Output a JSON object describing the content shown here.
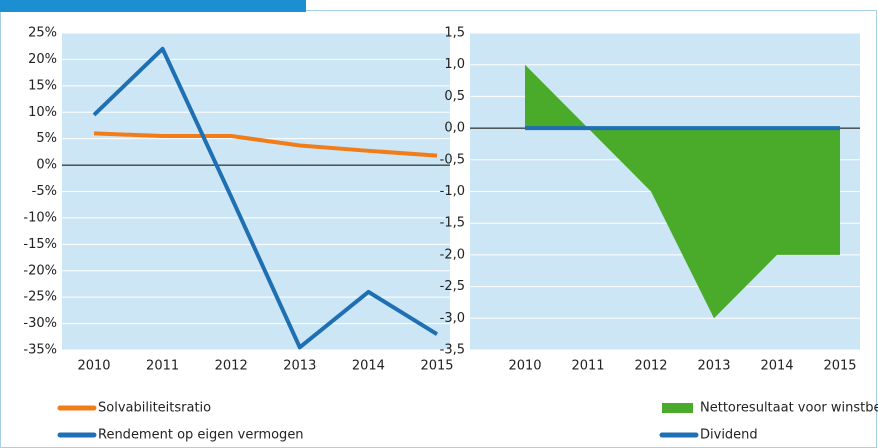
{
  "chart_data": [
    {
      "type": "line",
      "categories": [
        "2010",
        "2011",
        "2012",
        "2013",
        "2014",
        "2015"
      ],
      "ylim": [
        -35,
        25
      ],
      "yticks": [
        {
          "value": 25,
          "label": "25%"
        },
        {
          "value": 20,
          "label": "20%"
        },
        {
          "value": 15,
          "label": "15%"
        },
        {
          "value": 10,
          "label": "10%"
        },
        {
          "value": 5,
          "label": "5%"
        },
        {
          "value": 0,
          "label": "0%"
        },
        {
          "value": -5,
          "label": "-5%"
        },
        {
          "value": -10,
          "label": "-10%"
        },
        {
          "value": -15,
          "label": "-15%"
        },
        {
          "value": -20,
          "label": "-20%"
        },
        {
          "value": -25,
          "label": "-25%"
        },
        {
          "value": -30,
          "label": "-30%"
        },
        {
          "value": -35,
          "label": "-35%"
        }
      ],
      "grid": true,
      "series": [
        {
          "name": "Solvabiliteitsratio",
          "color": "#f07d1a",
          "type": "line",
          "values": [
            6,
            5.5,
            5.5,
            3.7,
            2.7,
            1.8
          ]
        },
        {
          "name": "Rendement op eigen vermogen",
          "color": "#1f6fb3",
          "type": "line",
          "values": [
            9.5,
            22,
            -6,
            -34.5,
            -24,
            -32
          ]
        }
      ]
    },
    {
      "type": "area",
      "categories": [
        "2010",
        "2011",
        "2012",
        "2013",
        "2014",
        "2015"
      ],
      "ylim": [
        -3.5,
        1.5
      ],
      "yticks": [
        {
          "value": 1.5,
          "label": "1,5"
        },
        {
          "value": 1,
          "label": "1,0"
        },
        {
          "value": 0.5,
          "label": "0,5"
        },
        {
          "value": 0,
          "label": "0,0"
        },
        {
          "value": -0.5,
          "label": "-0,5"
        },
        {
          "value": -1,
          "label": "-1,0"
        },
        {
          "value": -1.5,
          "label": "-1,5"
        },
        {
          "value": -2,
          "label": "-2,0"
        },
        {
          "value": -2.5,
          "label": "-2,5"
        },
        {
          "value": -3,
          "label": "-3,0"
        },
        {
          "value": -3.5,
          "label": "-3,5"
        }
      ],
      "grid": true,
      "series": [
        {
          "name": "Nettoresultaat voor winstbestemming",
          "color": "#4aaa2a",
          "type": "area",
          "values": [
            1,
            0,
            -1,
            -3,
            -2,
            -2
          ]
        },
        {
          "name": "Dividend",
          "color": "#1f6fb3",
          "type": "line",
          "values": [
            0,
            0,
            0,
            0,
            0,
            0
          ]
        }
      ]
    }
  ]
}
